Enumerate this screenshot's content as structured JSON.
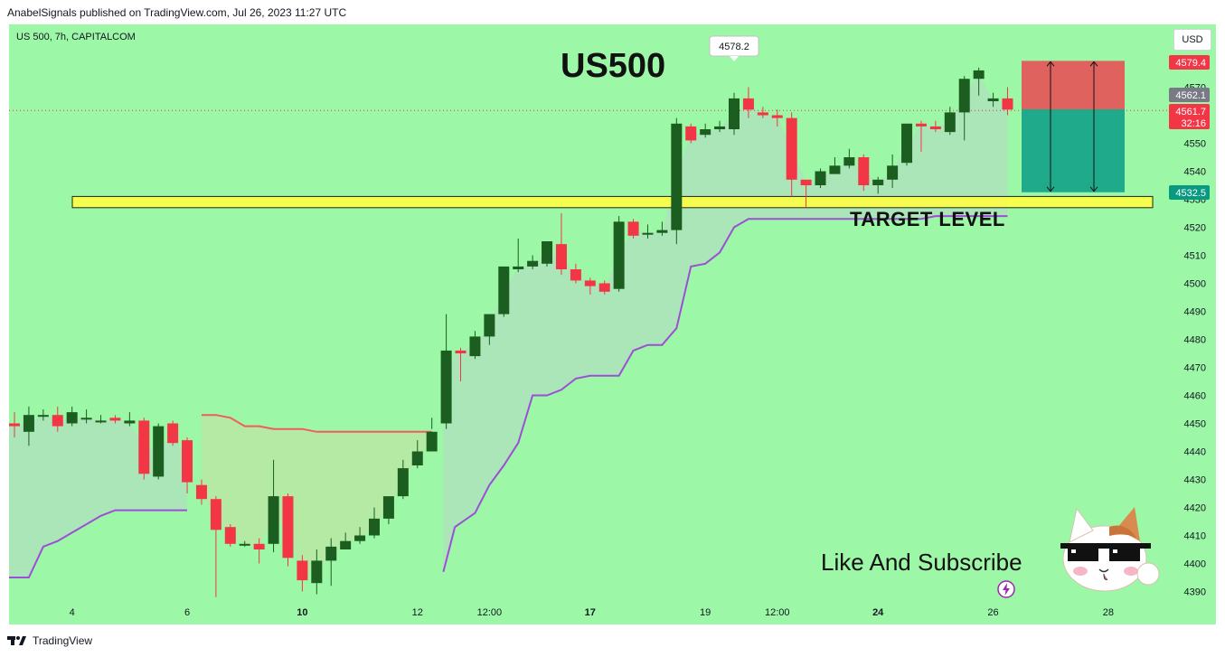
{
  "header": {
    "publisher_line": "AnabelSignals published on TradingView.com, Jul 26, 2023 11:27 UTC"
  },
  "footer": {
    "brand": "TradingView"
  },
  "symbol_line": "US 500, 7h, CAPITALCOM",
  "currency_button": "USD",
  "annotations": {
    "title": "US500",
    "target_label": "TARGET LEVEL",
    "cta": "Like And Subscribe",
    "high_callout": "4578.2"
  },
  "price_tags": [
    {
      "label": "4579.4",
      "color": "#f23645"
    },
    {
      "label": "4562.1",
      "color": "#787b86"
    },
    {
      "label": "4561.7",
      "sub": "32:16",
      "color": "#f23645"
    },
    {
      "label": "4532.5",
      "color": "#089981"
    }
  ],
  "colors": {
    "background": "#9cf7a6",
    "bull": "#1b5e20",
    "bear": "#f23645",
    "supertrend_up": "#9c4fd6",
    "supertrend_down": "#f25c5c",
    "target_band": "#ffff44",
    "stop_zone": "#e45a5a",
    "profit_zone": "#17a589"
  },
  "chart_data": {
    "type": "candlestick",
    "timeframe": "7h",
    "y_axis": {
      "ticks": [
        4570,
        4560,
        4550,
        4540,
        4530,
        4520,
        4510,
        4500,
        4490,
        4480,
        4470,
        4460,
        4450,
        4440,
        4430,
        4420,
        4410,
        4400,
        4390
      ],
      "ylim": [
        4386,
        4591
      ]
    },
    "x_axis": {
      "ticks": [
        {
          "label": "4",
          "bold": false,
          "i": 4
        },
        {
          "label": "6",
          "bold": false,
          "i": 12
        },
        {
          "label": "10",
          "bold": true,
          "i": 20
        },
        {
          "label": "12",
          "bold": false,
          "i": 28
        },
        {
          "label": "12:00",
          "bold": false,
          "i": 33
        },
        {
          "label": "17",
          "bold": true,
          "i": 40
        },
        {
          "label": "19",
          "bold": false,
          "i": 48
        },
        {
          "label": "12:00",
          "bold": false,
          "i": 53
        },
        {
          "label": "24",
          "bold": true,
          "i": 60
        },
        {
          "label": "26",
          "bold": false,
          "i": 68
        },
        {
          "label": "28",
          "bold": false,
          "i": 76
        }
      ]
    },
    "candles": [
      [
        4450,
        4449,
        4454,
        4445
      ],
      [
        4447,
        4453,
        4456,
        4442
      ],
      [
        4453,
        4453,
        4455,
        4451
      ],
      [
        4453,
        4449,
        4456,
        4447
      ],
      [
        4450,
        4454,
        4456,
        4449
      ],
      [
        4452,
        4452,
        4455,
        4450
      ],
      [
        4451,
        4451,
        4453,
        4450
      ],
      [
        4452,
        4451,
        4453,
        4450
      ],
      [
        4450,
        4451,
        4454,
        4449
      ],
      [
        4451,
        4432,
        4452,
        4430
      ],
      [
        4431,
        4449,
        4450,
        4430
      ],
      [
        4450,
        4443,
        4451,
        4442
      ],
      [
        4444,
        4429,
        4445,
        4425
      ],
      [
        4428,
        4423,
        4430,
        4421
      ],
      [
        4423,
        4412,
        4424,
        4388
      ],
      [
        4413,
        4407,
        4414,
        4406
      ],
      [
        4407,
        4407,
        4408,
        4406
      ],
      [
        4407,
        4405,
        4409,
        4400
      ],
      [
        4407,
        4424,
        4437,
        4404
      ],
      [
        4424,
        4402,
        4425,
        4399
      ],
      [
        4401,
        4394,
        4403,
        4390
      ],
      [
        4393,
        4401,
        4405,
        4389
      ],
      [
        4401,
        4406,
        4409,
        4392
      ],
      [
        4405,
        4408,
        4411,
        4405
      ],
      [
        4408,
        4410,
        4413,
        4407
      ],
      [
        4410,
        4416,
        4420,
        4409
      ],
      [
        4416,
        4424,
        4424,
        4414
      ],
      [
        4424,
        4434,
        4437,
        4423
      ],
      [
        4435,
        4440,
        4444,
        4434
      ],
      [
        4440,
        4447,
        4452,
        4448
      ],
      [
        4450,
        4476,
        4489,
        4448
      ],
      [
        4476,
        4475,
        4477,
        4465
      ],
      [
        4474,
        4481,
        4483,
        4473
      ],
      [
        4481,
        4489,
        4489,
        4478
      ],
      [
        4489,
        4506,
        4506,
        4488
      ],
      [
        4505,
        4506,
        4516,
        4504
      ],
      [
        4506,
        4508,
        4510,
        4505
      ],
      [
        4507,
        4515,
        4515,
        4506
      ],
      [
        4514,
        4505,
        4525,
        4503
      ],
      [
        4505,
        4501,
        4507,
        4500
      ],
      [
        4501,
        4499,
        4502,
        4496
      ],
      [
        4500,
        4497,
        4501,
        4496
      ],
      [
        4498,
        4522,
        4524,
        4497
      ],
      [
        4522,
        4517,
        4523,
        4516
      ],
      [
        4518,
        4518,
        4521,
        4516
      ],
      [
        4518,
        4519,
        4522,
        4517
      ],
      [
        4519,
        4557,
        4559,
        4514
      ],
      [
        4556,
        4551,
        4557,
        4550
      ],
      [
        4553,
        4555,
        4557,
        4552
      ],
      [
        4555,
        4556,
        4558,
        4554
      ],
      [
        4555,
        4566,
        4568,
        4553
      ],
      [
        4566,
        4562,
        4570,
        4559
      ],
      [
        4561,
        4560,
        4563,
        4559
      ],
      [
        4560,
        4559,
        4562,
        4556
      ],
      [
        4559,
        4537,
        4561,
        4531
      ],
      [
        4537,
        4535,
        4536,
        4527
      ],
      [
        4535,
        4540,
        4541,
        4534
      ],
      [
        4539,
        4542,
        4545,
        4540
      ],
      [
        4542,
        4545,
        4548,
        4541
      ],
      [
        4545,
        4535,
        4546,
        4533
      ],
      [
        4535,
        4537,
        4538,
        4532
      ],
      [
        4537,
        4542,
        4546,
        4534
      ],
      [
        4543,
        4557,
        4557,
        4542
      ],
      [
        4557,
        4556,
        4558,
        4547
      ],
      [
        4556,
        4555,
        4558,
        4554
      ],
      [
        4554,
        4561,
        4563,
        4553
      ],
      [
        4561,
        4573,
        4574,
        4551
      ],
      [
        4573,
        4576,
        4577,
        4567
      ],
      [
        4565,
        4566,
        4568,
        4563
      ],
      [
        4566,
        4562,
        4570,
        4560
      ]
    ],
    "supertrend_lower": [
      [
        0,
        4395
      ],
      [
        1,
        4395
      ],
      [
        2,
        4406
      ],
      [
        3,
        4408
      ],
      [
        4,
        4411
      ],
      [
        5,
        4414
      ],
      [
        6,
        4417
      ],
      [
        7,
        4419
      ],
      [
        8,
        4419
      ],
      [
        9,
        4419
      ],
      [
        10,
        4419
      ],
      [
        11,
        4419
      ],
      [
        12,
        4419
      ],
      [
        29.8,
        4397
      ],
      [
        30.6,
        4413
      ],
      [
        32,
        4418
      ],
      [
        33,
        4428
      ],
      [
        34,
        4435
      ],
      [
        35,
        4443
      ],
      [
        36,
        4460
      ],
      [
        37,
        4460
      ],
      [
        38,
        4462
      ],
      [
        39,
        4466
      ],
      [
        40,
        4467
      ],
      [
        41,
        4467
      ],
      [
        42,
        4467
      ],
      [
        43,
        4476
      ],
      [
        44,
        4478
      ],
      [
        45,
        4478
      ],
      [
        46,
        4484
      ],
      [
        47,
        4506
      ],
      [
        48,
        4507
      ],
      [
        49,
        4511
      ],
      [
        50,
        4520
      ],
      [
        51,
        4523
      ],
      [
        52,
        4523
      ],
      [
        53,
        4523
      ],
      [
        54,
        4523
      ],
      [
        55,
        4523
      ],
      [
        56,
        4523
      ],
      [
        57,
        4523
      ],
      [
        58,
        4523
      ],
      [
        59,
        4523
      ],
      [
        60,
        4523
      ],
      [
        61,
        4523
      ],
      [
        62,
        4523
      ],
      [
        63,
        4523
      ],
      [
        64,
        4524
      ],
      [
        65,
        4524
      ],
      [
        66,
        4524
      ],
      [
        67,
        4524
      ],
      [
        68,
        4524
      ],
      [
        69,
        4524
      ]
    ],
    "supertrend_upper": [
      [
        13,
        4453
      ],
      [
        14,
        4453
      ],
      [
        15,
        4452
      ],
      [
        16,
        4449
      ],
      [
        17,
        4449
      ],
      [
        18,
        4448
      ],
      [
        19,
        4448
      ],
      [
        20,
        4448
      ],
      [
        21,
        4447
      ],
      [
        22,
        4447
      ],
      [
        23,
        4447
      ],
      [
        24,
        4447
      ],
      [
        25,
        4447
      ],
      [
        26,
        4447
      ],
      [
        27,
        4447
      ],
      [
        28,
        4447
      ],
      [
        29,
        4447
      ]
    ],
    "target_level": {
      "from": 4527,
      "to": 4531
    },
    "position": {
      "entry": 4562.1,
      "stop": 4579.4,
      "target": 4532.5
    }
  }
}
